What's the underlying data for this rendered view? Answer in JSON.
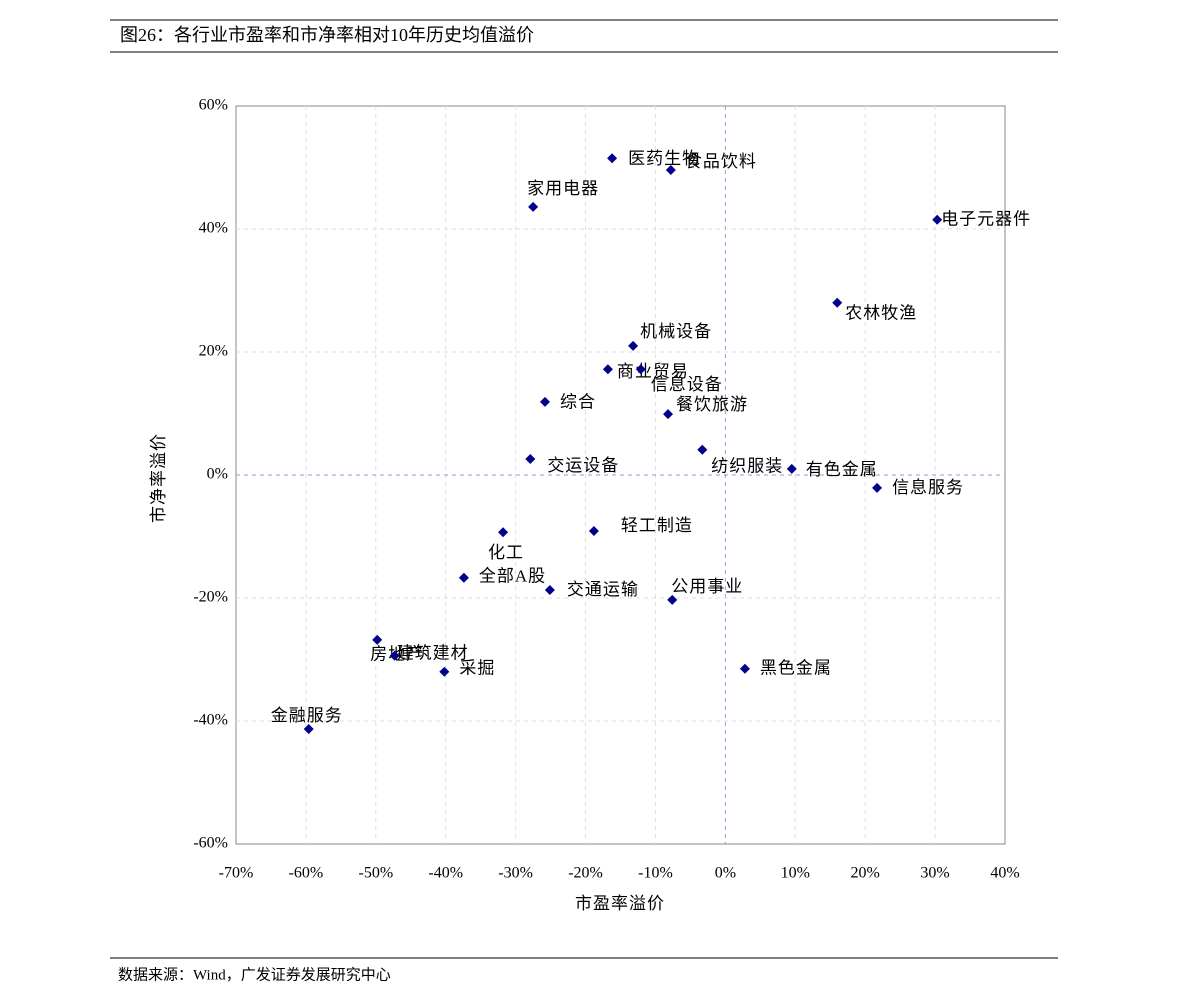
{
  "chart_data": {
    "type": "scatter",
    "title": "图26：各行业市盈率和市净率相对10年历史均值溢价",
    "x_label": "市盈率溢价",
    "y_label": "市净率溢价",
    "source": "数据来源：Wind，广发证券发展研究中心",
    "color": "#00008b",
    "xlim": [
      -70,
      40
    ],
    "ylim": [
      -60,
      60
    ],
    "xticks": [
      {
        "value": -70,
        "label": "-70%"
      },
      {
        "value": -60,
        "label": "-60%"
      },
      {
        "value": -50,
        "label": "-50%"
      },
      {
        "value": -40,
        "label": "-40%"
      },
      {
        "value": -30,
        "label": "-30%"
      },
      {
        "value": -20,
        "label": "-20%"
      },
      {
        "value": -10,
        "label": "-10%"
      },
      {
        "value": 0,
        "label": "0%"
      },
      {
        "value": 10,
        "label": "10%"
      },
      {
        "value": 20,
        "label": "20%"
      },
      {
        "value": 30,
        "label": "30%"
      },
      {
        "value": 40,
        "label": "40%"
      }
    ],
    "yticks": [
      {
        "value": -60,
        "label": "-60%"
      },
      {
        "value": -40,
        "label": "-40%"
      },
      {
        "value": -20,
        "label": "-20%"
      },
      {
        "value": 0,
        "label": "0%"
      },
      {
        "value": 20,
        "label": "20%"
      },
      {
        "value": 40,
        "label": "40%"
      },
      {
        "value": 60,
        "label": "60%"
      }
    ],
    "grid": true,
    "labels": [
      "医药生物",
      "食品饮料",
      "家用电器",
      "电子元器件",
      "农林牧渔",
      "机械设备",
      "商业贸易",
      "信息设备",
      "综合",
      "餐饮旅游",
      "交运设备",
      "纺织服装",
      "有色金属",
      "信息服务",
      "化工",
      "轻工制造",
      "全部A股",
      "交通运输",
      "公用事业",
      "房地产",
      "建筑建材",
      "采掘",
      "黑色金属",
      "金融服务"
    ],
    "x": [
      -16.2,
      -7.8,
      -27.5,
      30.3,
      16.0,
      -13.2,
      -16.8,
      -12.1,
      -25.8,
      -8.2,
      -27.9,
      -3.3,
      9.5,
      21.7,
      -31.8,
      -18.8,
      -37.4,
      -25.1,
      -7.6,
      -49.8,
      -47.3,
      -40.2,
      2.8,
      -59.6
    ],
    "y": [
      51.5,
      49.6,
      43.6,
      41.5,
      28.0,
      21.0,
      17.2,
      17.2,
      11.9,
      9.9,
      2.6,
      4.1,
      1.0,
      -2.1,
      -9.3,
      -9.1,
      -16.7,
      -18.7,
      -20.3,
      -26.8,
      -29.4,
      -32.0,
      -31.5,
      -41.3
    ]
  }
}
